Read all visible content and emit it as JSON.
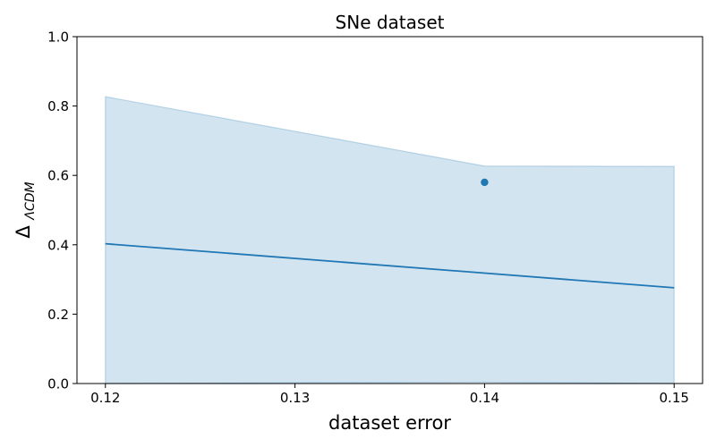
{
  "chart_data": {
    "type": "line",
    "title": "SNe dataset",
    "xlabel": "dataset error",
    "ylabel": "Δ",
    "ylabel_sub": "ΛCDM",
    "xlim": [
      0.1185,
      0.1515
    ],
    "ylim": [
      0,
      1.0
    ],
    "xticks": [
      0.12,
      0.13,
      0.14,
      0.15
    ],
    "xtick_labels": [
      "0.12",
      "0.13",
      "0.14",
      "0.15"
    ],
    "yticks": [
      0,
      0.2,
      0.4,
      0.6,
      0.8,
      1.0
    ],
    "ytick_labels": [
      "0.0",
      "0.2",
      "0.4",
      "0.6",
      "0.8",
      "1.0"
    ],
    "grid": false,
    "line": {
      "x": [
        0.12,
        0.15
      ],
      "y": [
        0.403,
        0.276
      ],
      "color": "#1f77b4"
    },
    "band": {
      "x": [
        0.12,
        0.14,
        0.15
      ],
      "upper": [
        0.827,
        0.627,
        0.626
      ],
      "lower": [
        0.0,
        0.004,
        0.0
      ],
      "fill": "#1f77b4",
      "opacity": 0.2
    },
    "points": [
      {
        "x": 0.14,
        "y": 0.58
      }
    ]
  }
}
